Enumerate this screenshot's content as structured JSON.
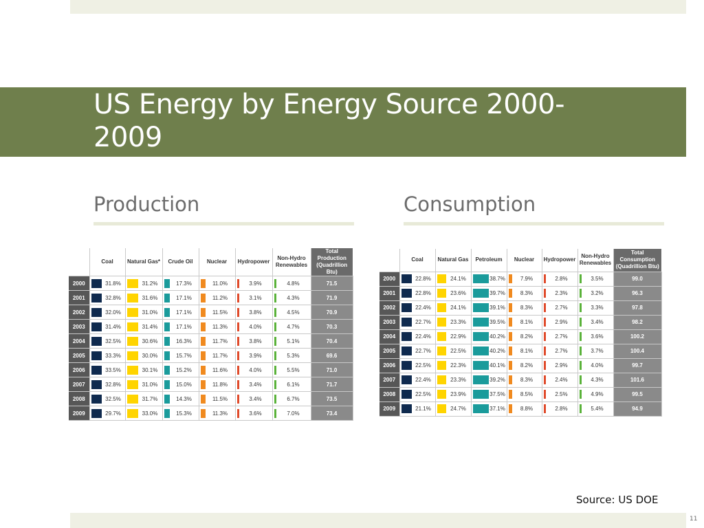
{
  "title": "US Energy by Energy Source 2000-2009",
  "production": {
    "heading": "Production",
    "columns": [
      "Coal",
      "Natural Gas*",
      "Crude Oil",
      "Nuclear",
      "Hydropower",
      "Non-Hydro Renewables",
      "Total Production (Quadrillion Btu)"
    ],
    "rows": [
      {
        "year": "2000",
        "values": [
          "31.8%",
          "31.2%",
          "17.3%",
          "11.0%",
          "3.9%",
          "4.8%"
        ],
        "total": "71.5"
      },
      {
        "year": "2001",
        "values": [
          "32.8%",
          "31.6%",
          "17.1%",
          "11.2%",
          "3.1%",
          "4.3%"
        ],
        "total": "71.9"
      },
      {
        "year": "2002",
        "values": [
          "32.0%",
          "31.0%",
          "17.1%",
          "11.5%",
          "3.8%",
          "4.5%"
        ],
        "total": "70.9"
      },
      {
        "year": "2003",
        "values": [
          "31.4%",
          "31.4%",
          "17.1%",
          "11.3%",
          "4.0%",
          "4.7%"
        ],
        "total": "70.3"
      },
      {
        "year": "2004",
        "values": [
          "32.5%",
          "30.6%",
          "16.3%",
          "11.7%",
          "3.8%",
          "5.1%"
        ],
        "total": "70.4"
      },
      {
        "year": "2005",
        "values": [
          "33.3%",
          "30.0%",
          "15.7%",
          "11.7%",
          "3.9%",
          "5.3%"
        ],
        "total": "69.6"
      },
      {
        "year": "2006",
        "values": [
          "33.5%",
          "30.1%",
          "15.2%",
          "11.6%",
          "4.0%",
          "5.5%"
        ],
        "total": "71.0"
      },
      {
        "year": "2007",
        "values": [
          "32.8%",
          "31.0%",
          "15.0%",
          "11.8%",
          "3.4%",
          "6.1%"
        ],
        "total": "71.7"
      },
      {
        "year": "2008",
        "values": [
          "32.5%",
          "31.7%",
          "14.3%",
          "11.5%",
          "3.4%",
          "6.7%"
        ],
        "total": "73.5"
      },
      {
        "year": "2009",
        "values": [
          "29.7%",
          "33.0%",
          "15.3%",
          "11.3%",
          "3.6%",
          "7.0%"
        ],
        "total": "73.4"
      }
    ]
  },
  "consumption": {
    "heading": "Consumption",
    "columns": [
      "Coal",
      "Natural Gas",
      "Petroleum",
      "Nuclear",
      "Hydropower",
      "Non-Hydro Renewables",
      "Total Consumption (Quadrillion Btu)"
    ],
    "rows": [
      {
        "year": "2000",
        "values": [
          "22.8%",
          "24.1%",
          "38.7%",
          "7.9%",
          "2.8%",
          "3.5%"
        ],
        "total": "99.0"
      },
      {
        "year": "2001",
        "values": [
          "22.8%",
          "23.6%",
          "39.7%",
          "8.3%",
          "2.3%",
          "3.2%"
        ],
        "total": "96.3"
      },
      {
        "year": "2002",
        "values": [
          "22.4%",
          "24.1%",
          "39.1%",
          "8.3%",
          "2.7%",
          "3.3%"
        ],
        "total": "97.8"
      },
      {
        "year": "2003",
        "values": [
          "22.7%",
          "23.3%",
          "39.5%",
          "8.1%",
          "2.9%",
          "3.4%"
        ],
        "total": "98.2"
      },
      {
        "year": "2004",
        "values": [
          "22.4%",
          "22.9%",
          "40.2%",
          "8.2%",
          "2.7%",
          "3.6%"
        ],
        "total": "100.2"
      },
      {
        "year": "2005",
        "values": [
          "22.7%",
          "22.5%",
          "40.2%",
          "8.1%",
          "2.7%",
          "3.7%"
        ],
        "total": "100.4"
      },
      {
        "year": "2006",
        "values": [
          "22.5%",
          "22.3%",
          "40.1%",
          "8.2%",
          "2.9%",
          "4.0%"
        ],
        "total": "99.7"
      },
      {
        "year": "2007",
        "values": [
          "22.4%",
          "23.3%",
          "39.2%",
          "8.3%",
          "2.4%",
          "4.3%"
        ],
        "total": "101.6"
      },
      {
        "year": "2008",
        "values": [
          "22.5%",
          "23.9%",
          "37.5%",
          "8.5%",
          "2.5%",
          "4.9%"
        ],
        "total": "99.5"
      },
      {
        "year": "2009",
        "values": [
          "21.1%",
          "24.7%",
          "37.1%",
          "8.8%",
          "2.8%",
          "5.4%"
        ],
        "total": "94.9"
      }
    ]
  },
  "colors": {
    "title_bar": "#6f7f4c",
    "coal": "#0f2a4e",
    "natural_gas": "#ffd400",
    "oil": "#1a9b9b",
    "nuclear": "#f08a1f",
    "hydropower": "#e04a2a",
    "non_hydro_renewables": "#5ab23a",
    "year_cell": "#575757",
    "total_cell": "#8a8a8a"
  },
  "source": "Source: US DOE",
  "page_number": "11"
}
